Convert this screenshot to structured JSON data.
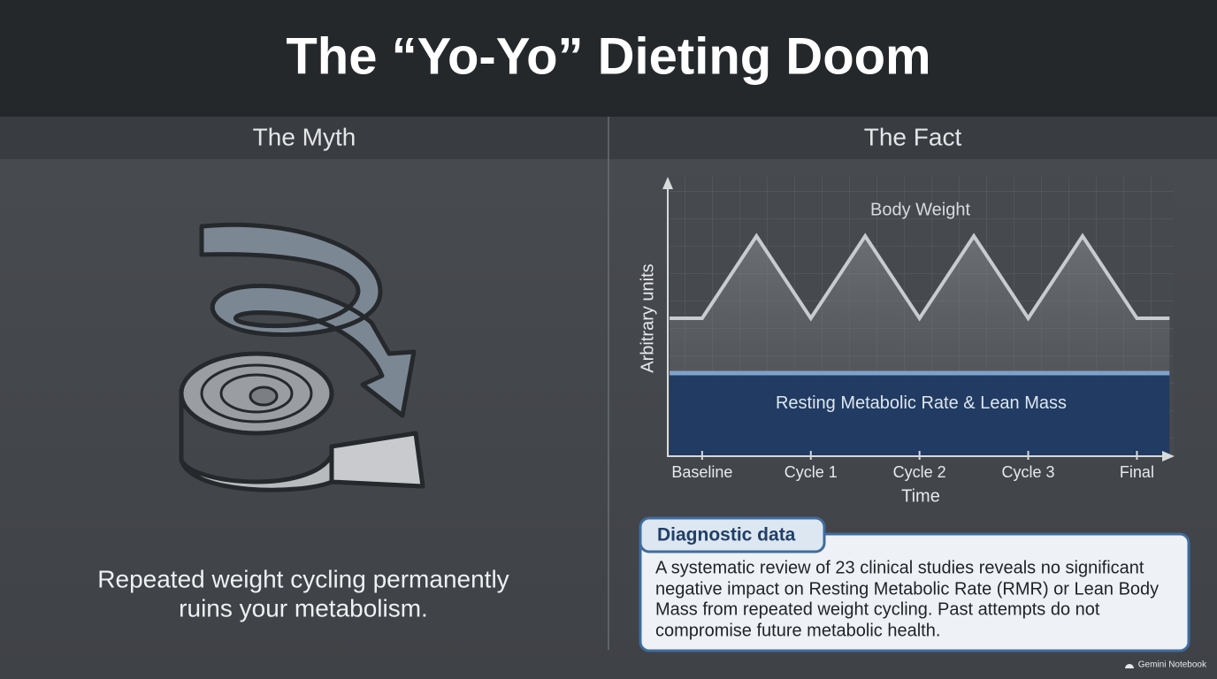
{
  "title": "The “Yo-Yo” Dieting Doom",
  "myth": {
    "heading": "The Myth",
    "text": [
      "Repeated weight cycling permanently",
      "ruins your metabolism."
    ]
  },
  "fact": {
    "heading": "The Fact"
  },
  "chart_data": {
    "type": "line",
    "x": [
      -0.3,
      0,
      0.5,
      1,
      1.5,
      2,
      2.5,
      3,
      3.5,
      4,
      4.3
    ],
    "xlim": [
      -0.3,
      4.33
    ],
    "ylim": [
      0,
      10
    ],
    "xticks": [
      {
        "value": 0,
        "label": "Baseline"
      },
      {
        "value": 1,
        "label": "Cycle 1"
      },
      {
        "value": 2,
        "label": "Cycle 2"
      },
      {
        "value": 3,
        "label": "Cycle 3"
      },
      {
        "value": 4,
        "label": "Final"
      }
    ],
    "x_label": "Time",
    "y_label": "Arbitrary units",
    "series": [
      {
        "name": "Body Weight",
        "color": "#c9cbce",
        "values": [
          5,
          5,
          8,
          5,
          8,
          5,
          8,
          5,
          8,
          5,
          5
        ]
      },
      {
        "name": "Resting Metabolic Rate & Lean Mass",
        "color": "#7fa1cc",
        "values": [
          3,
          3,
          3,
          3,
          3,
          3,
          3,
          3,
          3,
          3,
          3
        ]
      }
    ]
  },
  "note": {
    "tab": "Diagnostic data",
    "lines": [
      "A systematic review of 23 clinical studies reveals no significant",
      "negative impact on Resting Metabolic Rate (RMR) or Lean Body",
      "Mass from repeated weight cycling. Past attempts do not",
      "compromise future metabolic health."
    ]
  },
  "watermark": "Gemini Notebook"
}
